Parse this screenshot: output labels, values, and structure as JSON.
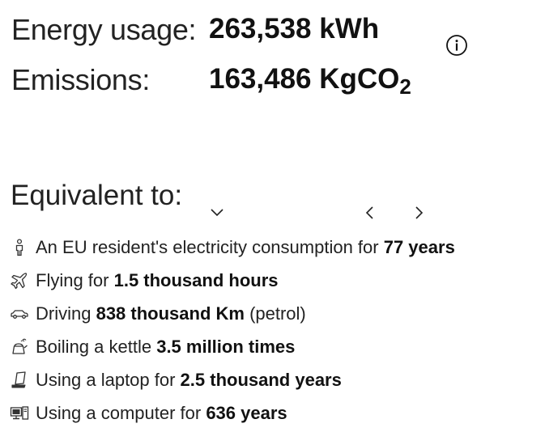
{
  "summary": {
    "energy_label": "Energy usage:",
    "energy_value": "263,538 kWh",
    "emissions_label": "Emissions:",
    "emissions_value": "163,486 KgCO",
    "emissions_subscript": "2",
    "info_icon": "info-circle-icon"
  },
  "equivalents": {
    "heading": "Equivalent to:",
    "dropdown_icon": "chevron-down-icon",
    "prev_icon": "chevron-left-icon",
    "next_icon": "chevron-right-icon",
    "items": [
      {
        "icon": "person-icon",
        "prefix": "An EU resident's electricity consumption for ",
        "value": "77 years",
        "suffix": ""
      },
      {
        "icon": "airplane-icon",
        "prefix": "Flying for ",
        "value": "1.5 thousand hours",
        "suffix": ""
      },
      {
        "icon": "car-icon",
        "prefix": "Driving ",
        "value": "838 thousand Km",
        "suffix": " (petrol)"
      },
      {
        "icon": "kettle-icon",
        "prefix": "Boiling a kettle ",
        "value": "3.5 million times",
        "suffix": ""
      },
      {
        "icon": "laptop-icon",
        "prefix": "Using a laptop for ",
        "value": "2.5 thousand years",
        "suffix": ""
      },
      {
        "icon": "computer-icon",
        "prefix": "Using a computer for ",
        "value": "636 years",
        "suffix": ""
      }
    ]
  }
}
